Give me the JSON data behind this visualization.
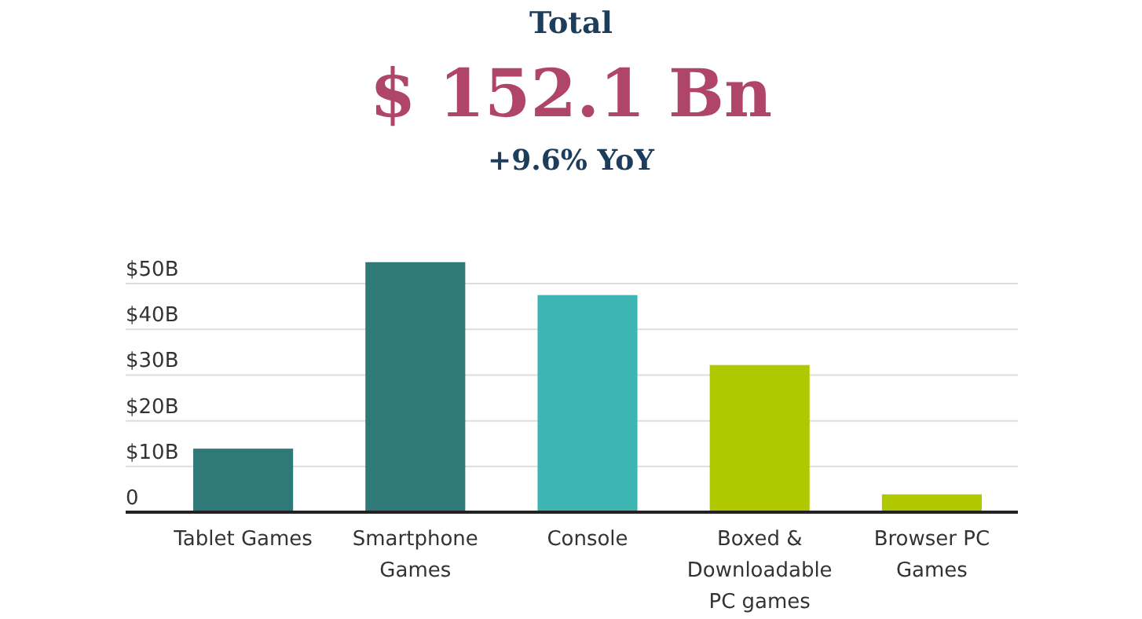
{
  "chart_data": {
    "type": "bar",
    "title": "Total",
    "subtitle": "$ 152.1 Bn",
    "annotations": [
      "+9.6% YoY"
    ],
    "categories": [
      "Tablet Games",
      "Smartphone Games",
      "Console",
      "Boxed & Downloadable PC games",
      "Browser PC Games"
    ],
    "values": [
      13.9,
      54.7,
      47.5,
      32.2,
      3.9
    ],
    "colors": [
      "#2f7a78",
      "#2f7a78",
      "#3db5b3",
      "#b0c800",
      "#b0c800"
    ],
    "ylim": [
      0,
      55
    ],
    "yticks": [
      0,
      {
        "value": 10,
        "label": "$10B"
      },
      {
        "value": 20,
        "label": "$20B"
      },
      {
        "value": 30,
        "label": "$30B"
      },
      {
        "value": 40,
        "label": "$40B"
      },
      {
        "value": 50,
        "label": "$50B"
      }
    ],
    "grid": "y"
  }
}
